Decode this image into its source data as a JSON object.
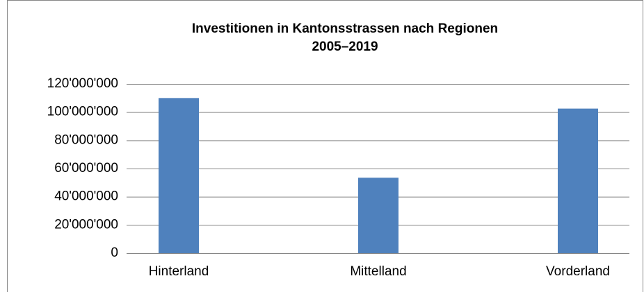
{
  "chart_data": {
    "type": "bar",
    "title": "Investitionen in Kantonsstrassen nach Regionen",
    "subtitle": "2005–2019",
    "categories": [
      "Hinterland",
      "Mittelland",
      "Vorderland"
    ],
    "values": [
      110000000,
      53500000,
      102500000
    ],
    "color": "#4f81bd",
    "ylim": [
      0,
      120000000
    ],
    "yticks": [
      0,
      {
        "value": 20000000,
        "label": "20'000'000"
      },
      {
        "value": 40000000,
        "label": "40'000'000"
      },
      {
        "value": 60000000,
        "label": "60'000'000"
      },
      {
        "value": 80000000,
        "label": "80'000'000"
      },
      {
        "value": 100000000,
        "label": "100'000'000"
      },
      {
        "value": 120000000,
        "label": "120'000'000"
      }
    ],
    "grid": true
  }
}
